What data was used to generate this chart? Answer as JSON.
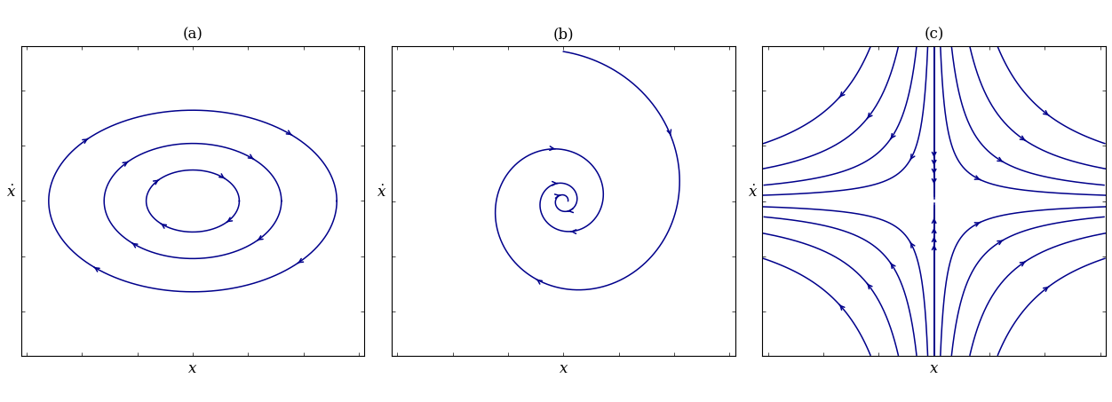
{
  "fig_width": 12.52,
  "fig_height": 4.53,
  "dpi": 100,
  "bg_color": "#ffffff",
  "line_color": "#00008B",
  "panel_labels": [
    "(a)",
    "(b)",
    "(c)"
  ],
  "xlabel": "x",
  "label_fontsize": 12,
  "title_fontsize": 12,
  "lw": 1.1
}
